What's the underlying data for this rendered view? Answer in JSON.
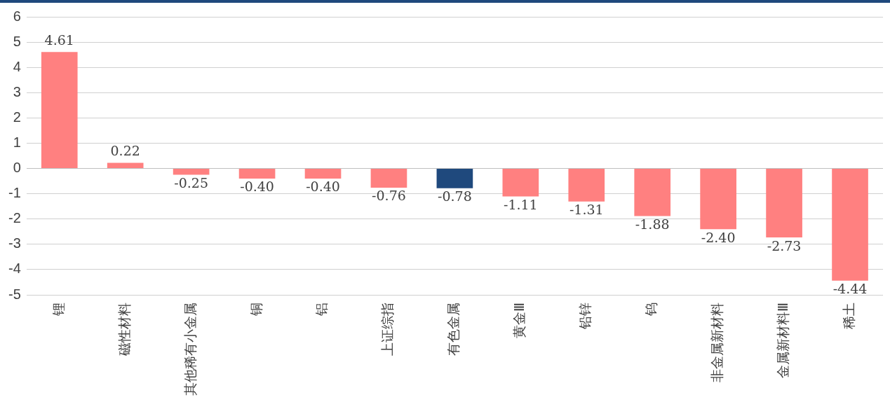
{
  "chart_data": {
    "type": "bar",
    "categories": [
      "锂",
      "磁性材料",
      "其他稀有小金属",
      "铜",
      "铝",
      "上证综指",
      "有色金属",
      "黄金Ⅲ",
      "铅锌",
      "钨",
      "非金属新材料",
      "金属新材料Ⅲ",
      "稀土"
    ],
    "values": [
      4.61,
      0.22,
      -0.25,
      -0.4,
      -0.4,
      -0.76,
      -0.78,
      -1.11,
      -1.31,
      -1.88,
      -2.4,
      -2.73,
      -4.44
    ],
    "colors": [
      "#ff8080",
      "#ff8080",
      "#ff8080",
      "#ff8080",
      "#ff8080",
      "#ff8080",
      "#1f497d",
      "#ff8080",
      "#ff8080",
      "#ff8080",
      "#ff8080",
      "#ff8080",
      "#ff8080"
    ],
    "ylim": [
      -5,
      6
    ],
    "yticks": [
      -5,
      -4,
      -3,
      -2,
      -1,
      0,
      1,
      2,
      3,
      4,
      5,
      6
    ],
    "value_labels": [
      "4.61",
      "0.22",
      "-0.25",
      "-0.40",
      "-0.40",
      "-0.76",
      "-0.78",
      "-1.11",
      "-1.31",
      "-1.88",
      "-2.40",
      "-2.73",
      "-4.44"
    ],
    "grid": "y"
  }
}
